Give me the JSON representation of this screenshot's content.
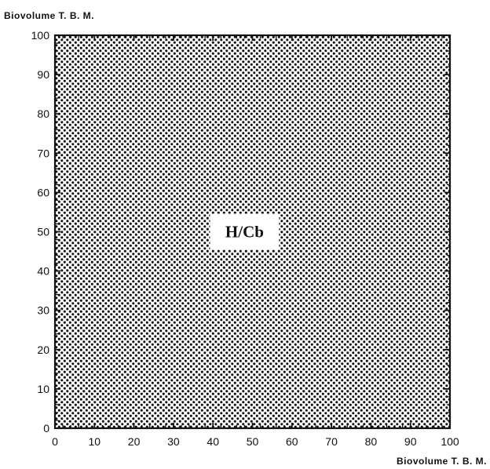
{
  "chart_data": {
    "type": "scatter",
    "title": "",
    "xlabel": "Biovolume  T. B. M.",
    "ylabel": "Biovolume  T. B. M.",
    "xlim": [
      0,
      100
    ],
    "ylim": [
      0,
      100
    ],
    "x_ticks": [
      0,
      10,
      20,
      30,
      40,
      50,
      60,
      70,
      80,
      90,
      100
    ],
    "y_ticks": [
      0,
      10,
      20,
      30,
      40,
      50,
      60,
      70,
      80,
      90,
      100
    ],
    "x_tick_labels": [
      "0",
      "10",
      "20",
      "30",
      "40",
      "50",
      "60",
      "70",
      "80",
      "90",
      "100"
    ],
    "y_tick_labels": [
      "0",
      "10",
      "20",
      "30",
      "40",
      "50",
      "60",
      "70",
      "80",
      "90",
      "100"
    ],
    "minor_tick_step": 2,
    "fill_pattern": "dot-stipple",
    "regions": [
      {
        "label": "H/Cb",
        "x_range": [
          0,
          100
        ],
        "y_range": [
          0,
          100
        ],
        "label_position": [
          48,
          50
        ]
      }
    ],
    "grid": false
  },
  "colors": {
    "ink": "#111111",
    "background": "#ffffff"
  }
}
